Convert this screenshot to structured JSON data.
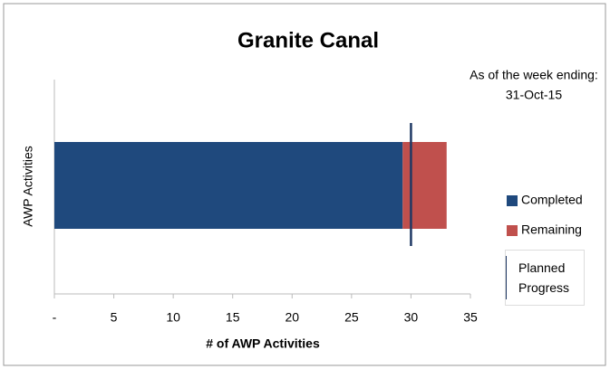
{
  "chart_data": {
    "type": "stacked-bar-horizontal",
    "title": "Granite Canal",
    "annotation": [
      "As of the week ending:",
      "31-Oct-15"
    ],
    "y_label": "AWP Activities",
    "x_label": "# of AWP Activities",
    "series": [
      {
        "name": "Completed",
        "color": "#1f497d",
        "values": [
          29.3
        ]
      },
      {
        "name": "Remaining",
        "color": "#c0504d",
        "values": [
          3.7
        ]
      }
    ],
    "planned": {
      "name": "Planned Progress",
      "color": "#1f3864",
      "value": 30
    },
    "xlim": [
      0,
      35
    ],
    "xticks": [
      {
        "value": 0,
        "label": "-"
      },
      5,
      10,
      15,
      20,
      25,
      30,
      35
    ],
    "legend": "right"
  }
}
